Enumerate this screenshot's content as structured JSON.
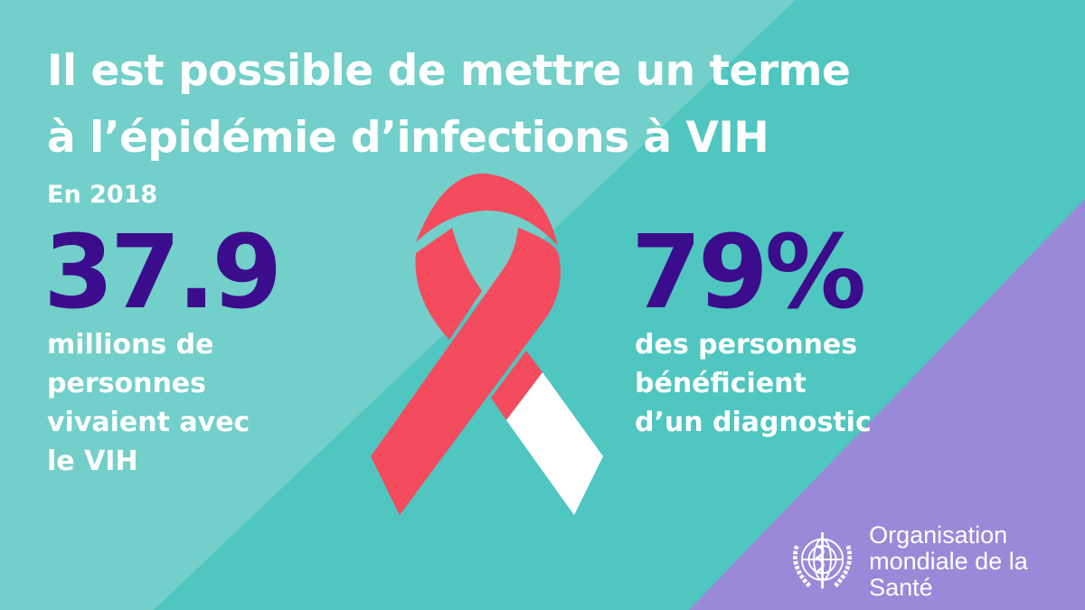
{
  "headline": {
    "line1": "Il est possible de mettre un terme",
    "line2": "à l’épidémie d’infections à VIH"
  },
  "year_label": "En 2018",
  "stat_left": {
    "value": "37.9",
    "lines": [
      "millions de",
      "personnes",
      "vivaient avec",
      "le VIH"
    ]
  },
  "stat_right": {
    "value": "79%",
    "lines": [
      "des personnes",
      "bénéficient",
      "d’un diagnostic"
    ]
  },
  "logo": {
    "line1": "Organisation",
    "line2": "mondiale de la Santé",
    "icon": "who-emblem-icon"
  },
  "colors": {
    "teal": "#4fc6c0",
    "teal_light": "#72cfc9",
    "purple": "#9a89d8",
    "stat": "#3b0d8c",
    "ribbon_red": "#f44b5e",
    "ribbon_white": "#ffffff"
  }
}
